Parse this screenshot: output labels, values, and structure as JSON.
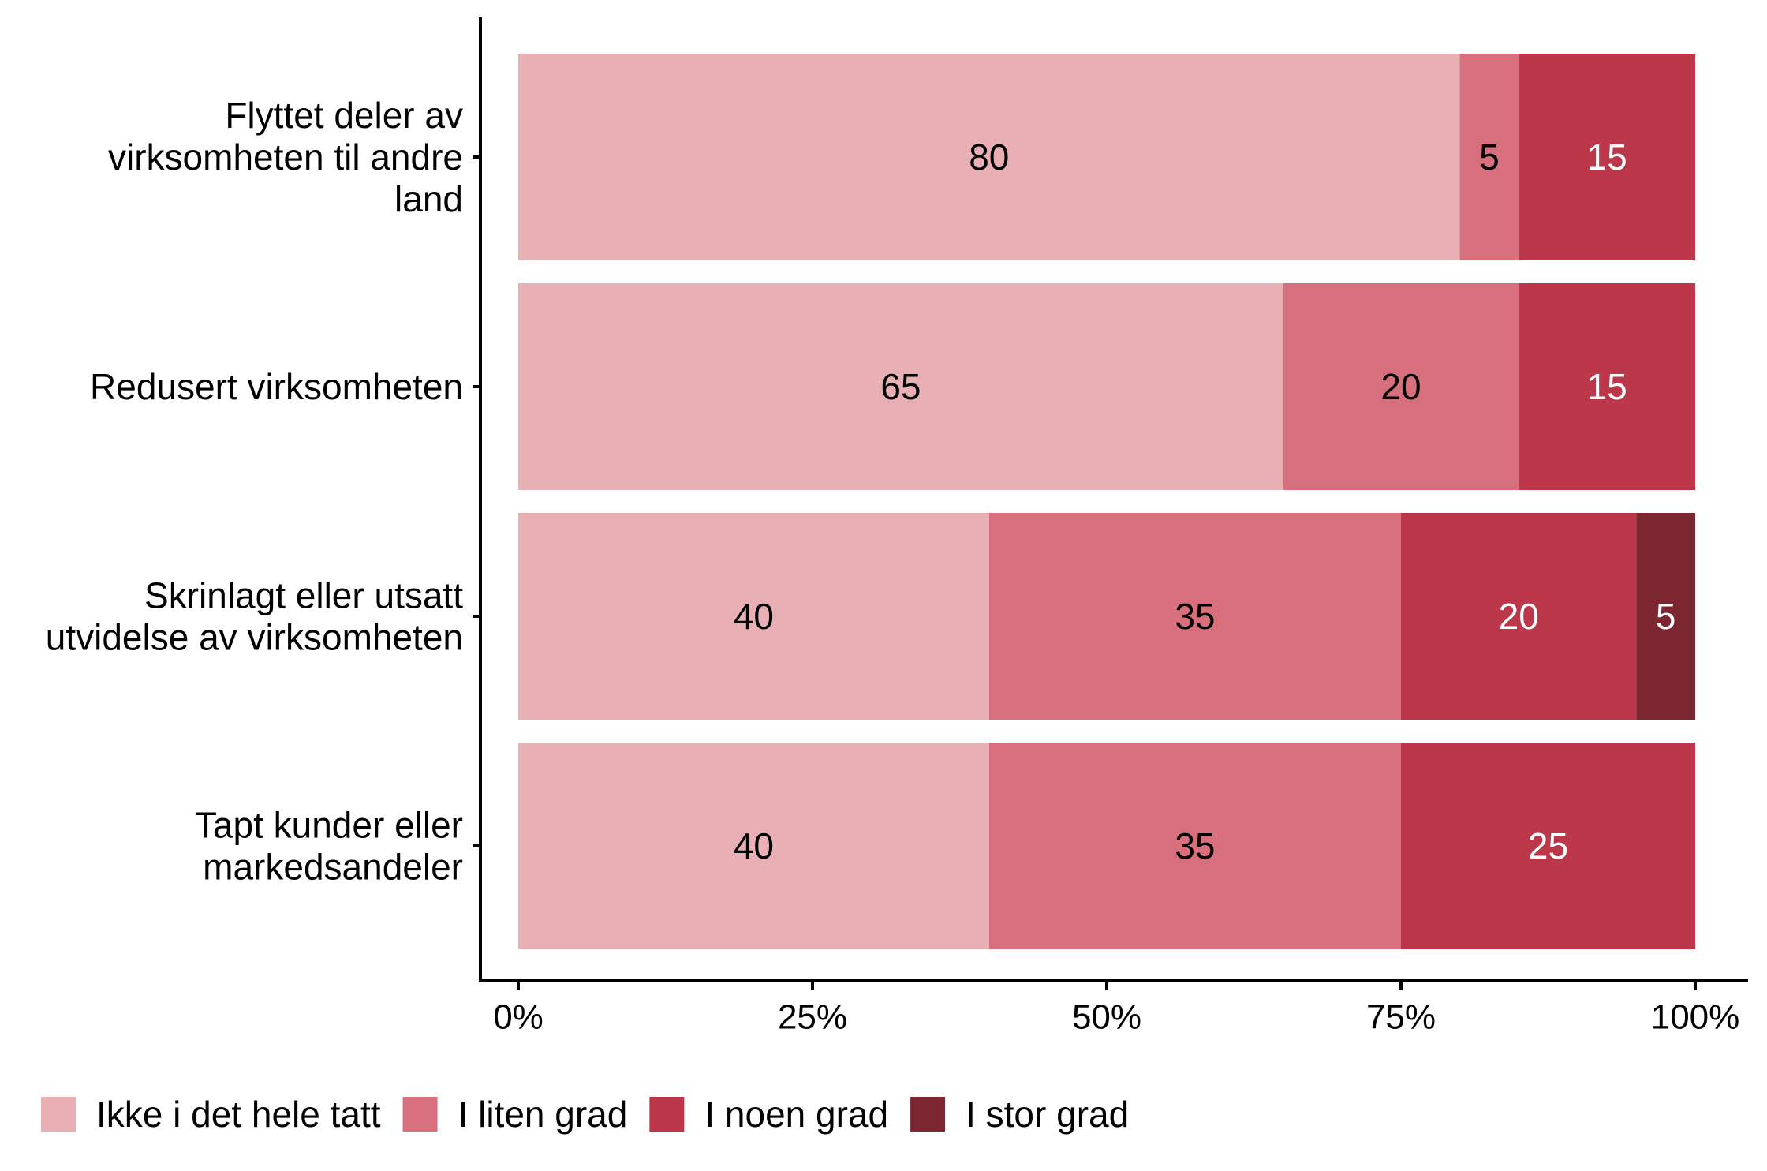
{
  "chart_data": {
    "type": "bar",
    "orientation": "horizontal",
    "stacked": true,
    "title": "",
    "xlabel": "",
    "ylabel": "",
    "xlim": [
      0,
      100
    ],
    "x_ticks": [
      "0%",
      "25%",
      "50%",
      "75%",
      "100%"
    ],
    "grid": false,
    "legend_position": "bottom",
    "categories": [
      [
        "Flyttet deler av",
        "virksomheten til andre",
        "land"
      ],
      [
        "Redusert virksomheten"
      ],
      [
        "Skrinlagt eller utsatt",
        "utvidelse av virksomheten"
      ],
      [
        "Tapt kunder eller",
        "markedsandeler"
      ]
    ],
    "series": [
      {
        "name": "Ikke i det hele tatt",
        "color": "#E8B0B5",
        "label_color": "#000000",
        "values": [
          80,
          65,
          40,
          40
        ]
      },
      {
        "name": "I liten grad",
        "color": "#D7707C",
        "label_color": "#000000",
        "values": [
          5,
          20,
          35,
          35
        ]
      },
      {
        "name": "I noen grad",
        "color": "#BD374A",
        "label_color": "#ffffff",
        "values": [
          15,
          15,
          20,
          25
        ]
      },
      {
        "name": "I stor grad",
        "color": "#7C2631",
        "label_color": "#ffffff",
        "values": [
          0,
          0,
          5,
          0
        ]
      }
    ]
  }
}
